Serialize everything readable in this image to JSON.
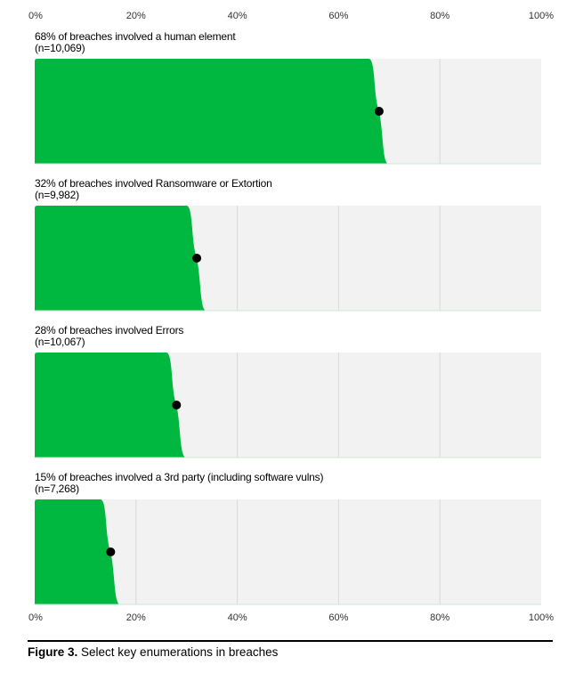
{
  "chart_data": {
    "type": "area",
    "xlim": [
      0,
      100
    ],
    "x_ticks": [
      "0%",
      "20%",
      "40%",
      "60%",
      "80%",
      "100%"
    ],
    "grid": true,
    "colors": {
      "fill": "#00b83f",
      "background": "#f2f2f2",
      "grid": "#d9d9d9",
      "point": "#000000"
    },
    "panels": [
      {
        "label": "68% of breaches involved a human element",
        "n": "(n=10,069)",
        "value": 68,
        "interval": [
          67,
          69
        ]
      },
      {
        "label": "32% of breaches involved Ransomware or Extortion",
        "n": "(n=9,982)",
        "value": 32,
        "interval": [
          31,
          33
        ]
      },
      {
        "label": "28% of breaches involved Errors",
        "n": "(n=10,067)",
        "value": 28,
        "interval": [
          27,
          29
        ]
      },
      {
        "label": "15% of breaches involved a 3rd party (including software vulns)",
        "n": "(n=7,268)",
        "value": 15,
        "interval": [
          14,
          16
        ]
      }
    ]
  },
  "caption": {
    "bold": "Figure 3.",
    "text": "Select key enumerations in breaches"
  }
}
